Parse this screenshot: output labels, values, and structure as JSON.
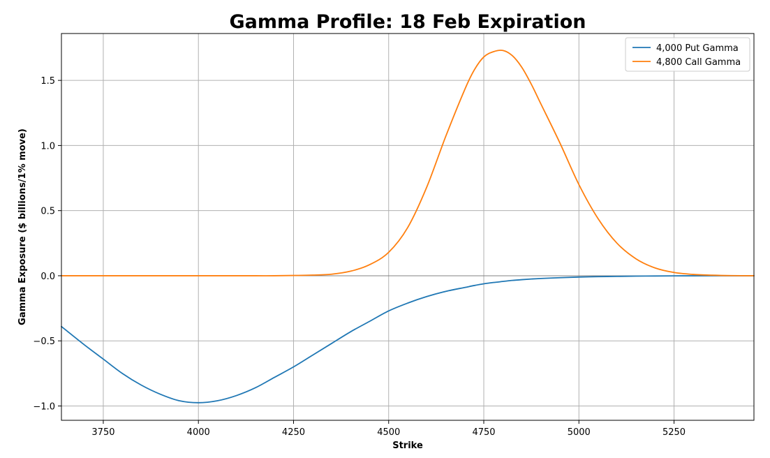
{
  "chart_data": {
    "type": "line",
    "title": "Gamma Profile: 18 Feb Expiration",
    "xlabel": "Strike",
    "ylabel": "Gamma Exposure ($ billions/1% move)",
    "xlim": [
      3640,
      5460
    ],
    "ylim": [
      -1.11,
      1.86
    ],
    "xticks": [
      3750,
      4000,
      4250,
      4500,
      4750,
      5000,
      5250
    ],
    "xtick_labels": [
      "3750",
      "4000",
      "4250",
      "4500",
      "4750",
      "5000",
      "5250"
    ],
    "yticks": [
      -1.0,
      -0.5,
      0.0,
      0.5,
      1.0,
      1.5
    ],
    "ytick_labels": [
      "−1.0",
      "−0.5",
      "0.0",
      "0.5",
      "1.0",
      "1.5"
    ],
    "grid": true,
    "zero_line": true,
    "legend_position": "top-right",
    "x": [
      3640,
      3700,
      3750,
      3800,
      3850,
      3900,
      3950,
      4000,
      4050,
      4100,
      4150,
      4200,
      4250,
      4300,
      4350,
      4400,
      4450,
      4500,
      4550,
      4600,
      4650,
      4700,
      4725,
      4750,
      4775,
      4800,
      4825,
      4850,
      4875,
      4900,
      4950,
      5000,
      5050,
      5100,
      5150,
      5200,
      5250,
      5300,
      5350,
      5400,
      5460
    ],
    "series": [
      {
        "name": "4,000 Put Gamma",
        "color": "#1f77b4",
        "values": [
          -0.39,
          -0.53,
          -0.64,
          -0.75,
          -0.84,
          -0.91,
          -0.96,
          -0.975,
          -0.96,
          -0.92,
          -0.86,
          -0.78,
          -0.7,
          -0.61,
          -0.52,
          -0.43,
          -0.35,
          -0.27,
          -0.21,
          -0.16,
          -0.12,
          -0.09,
          -0.075,
          -0.062,
          -0.052,
          -0.044,
          -0.036,
          -0.03,
          -0.025,
          -0.021,
          -0.015,
          -0.01,
          -0.007,
          -0.005,
          -0.003,
          -0.002,
          -0.001,
          -0.0005,
          -0.0003,
          -0.0001,
          0.0
        ]
      },
      {
        "name": "4,800 Call Gamma",
        "color": "#ff7f0e",
        "values": [
          0,
          0,
          0,
          0,
          0,
          0,
          0,
          0,
          0,
          0,
          0,
          0,
          0.002,
          0.005,
          0.012,
          0.035,
          0.085,
          0.18,
          0.37,
          0.68,
          1.07,
          1.43,
          1.58,
          1.68,
          1.72,
          1.73,
          1.69,
          1.6,
          1.47,
          1.32,
          1.02,
          0.7,
          0.44,
          0.25,
          0.13,
          0.06,
          0.025,
          0.01,
          0.004,
          0.001,
          0.0
        ]
      }
    ]
  }
}
